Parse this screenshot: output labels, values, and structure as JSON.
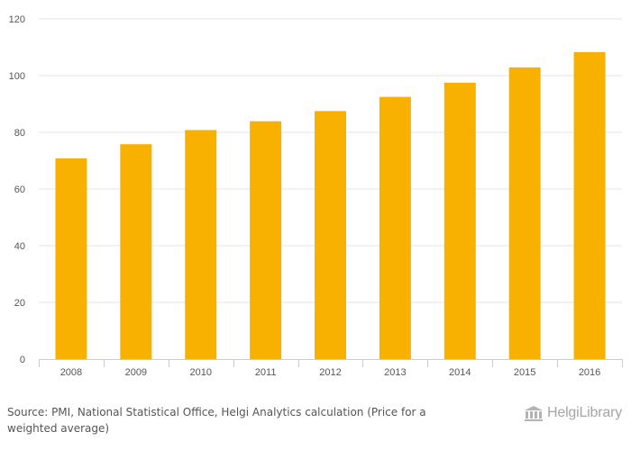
{
  "chart_data": {
    "type": "bar",
    "categories": [
      "2008",
      "2009",
      "2010",
      "2011",
      "2012",
      "2013",
      "2014",
      "2015",
      "2016"
    ],
    "values": [
      70.8,
      75.8,
      80.8,
      83.9,
      87.5,
      92.5,
      97.5,
      102.9,
      108.3
    ],
    "title": "",
    "xlabel": "",
    "ylabel": "",
    "ylim": [
      0,
      120
    ],
    "yticks": [
      0,
      20,
      40,
      60,
      80,
      100,
      120
    ],
    "grid": true,
    "bar_color": "#f9b100"
  },
  "footer": {
    "source": "Source: PMI, National Statistical Office, Helgi Analytics calculation (Price for a weighted average)"
  },
  "brand": {
    "name": "HelgiLibrary",
    "part1": "Helgi",
    "part2": "Library",
    "icon": "library-building-icon"
  }
}
